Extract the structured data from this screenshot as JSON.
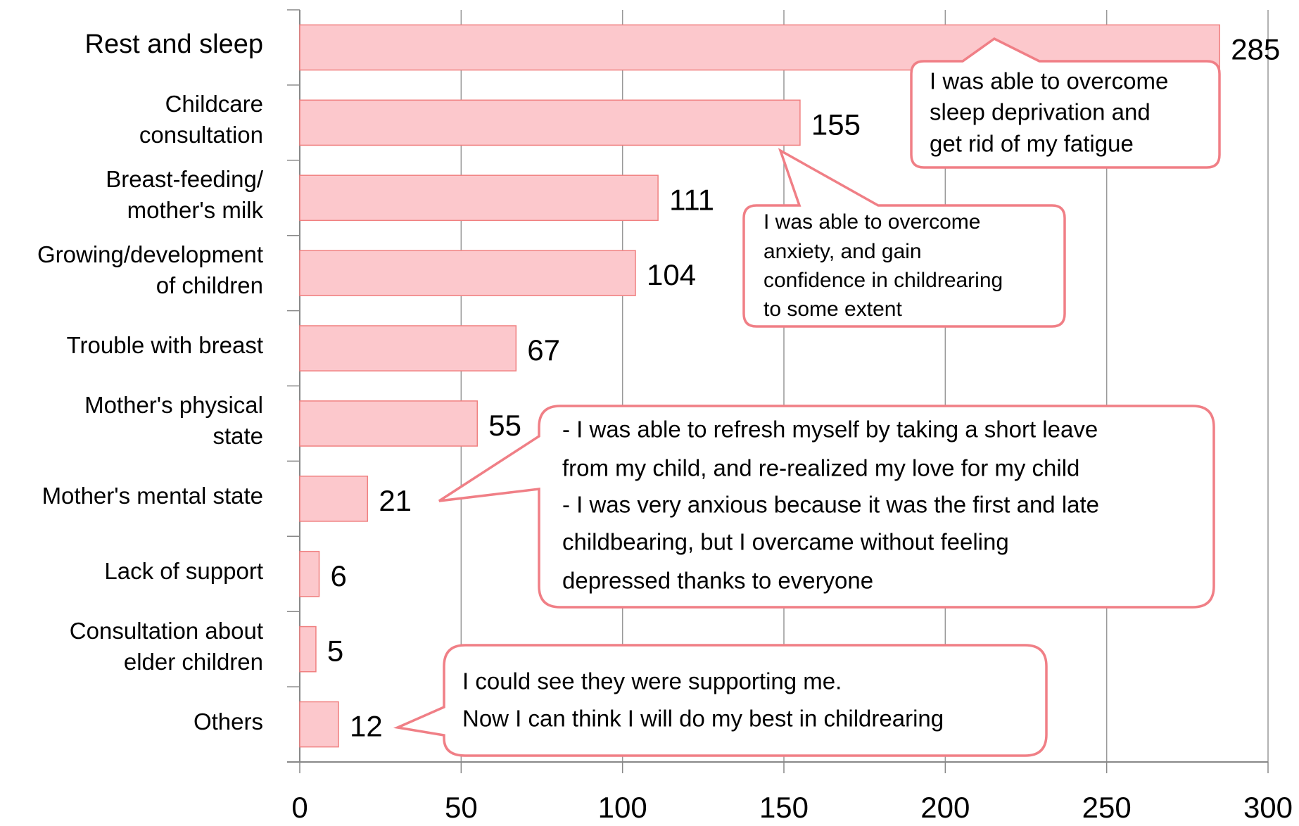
{
  "chart_data": {
    "type": "bar",
    "orientation": "horizontal",
    "categories": [
      "Rest and sleep",
      "Childcare\nconsultation",
      "Breast-feeding/\nmother's milk",
      "Growing/development\nof children",
      "Trouble with breast",
      "Mother's physical\nstate",
      "Mother's mental state",
      "Lack of support",
      "Consultation about\nelder children",
      "Others"
    ],
    "values": [
      285,
      155,
      111,
      104,
      67,
      55,
      21,
      6,
      5,
      12
    ],
    "color": "#fcc8cc",
    "edge_color": "#f08080",
    "xlim": [
      0,
      300
    ],
    "xticks": [
      0,
      50,
      100,
      150,
      200,
      250,
      300
    ],
    "grid": true,
    "annotations": [
      [
        "I was able to overcome",
        "sleep deprivation and",
        "get rid of my fatigue"
      ],
      [
        "I was able to overcome",
        "anxiety, and gain",
        "confidence in childrearing",
        "to some extent"
      ],
      [
        "- I was able to refresh myself by taking a short leave",
        "from my child, and re-realized my love for my child",
        "- I was very anxious because it was the first and late",
        "childbearing, but I overcame without feeling",
        "depressed thanks to everyone"
      ],
      [
        "I could see they were supporting me.",
        "Now I can think I will do my best in childrearing"
      ]
    ]
  }
}
